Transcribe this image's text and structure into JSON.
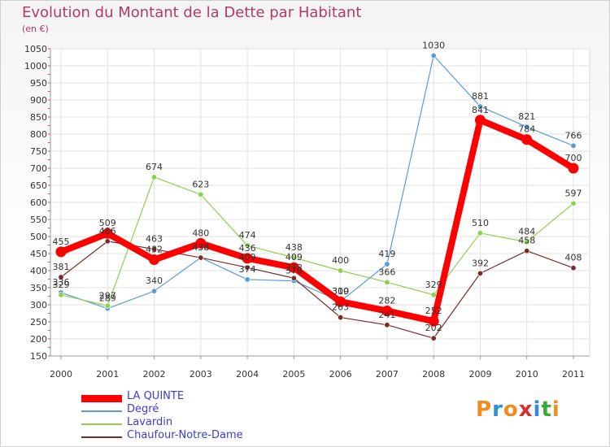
{
  "header": {
    "title": "Evolution du Montant de la Dette par Habitant",
    "subtitle": "(en €)"
  },
  "logo": {
    "text": "Proxiti",
    "colors": [
      "#f28c1e",
      "#2f8fd6",
      "#f28c1e",
      "#d62f2f",
      "#2f8fd6",
      "#3aa83a",
      "#f28c1e"
    ]
  },
  "chart_data": {
    "type": "line",
    "title": "Evolution du Montant de la Dette par Habitant",
    "subtitle": "(en €)",
    "xlabel": "",
    "ylabel": "",
    "categories": [
      "2000",
      "2001",
      "2002",
      "2003",
      "2004",
      "2005",
      "2006",
      "2007",
      "2008",
      "2009",
      "2010",
      "2011"
    ],
    "ylim": [
      150,
      1050
    ],
    "yticks": [
      150,
      200,
      250,
      300,
      350,
      400,
      450,
      500,
      550,
      600,
      650,
      700,
      750,
      800,
      850,
      900,
      950,
      1000,
      1050
    ],
    "grid": true,
    "legend_position": "bottom-left",
    "series": [
      {
        "name": "LA QUINTE",
        "color": "#ff0000",
        "values": [
          455,
          509,
          432,
          480,
          436,
          409,
          309,
          282,
          252,
          841,
          784,
          700
        ]
      },
      {
        "name": "Degré",
        "color": "#5b9bd5",
        "values": [
          336,
          289,
          340,
          438,
          374,
          370,
          310,
          419,
          1030,
          881,
          821,
          766
        ]
      },
      {
        "name": "Lavardin",
        "color": "#8bd14a",
        "values": [
          329,
          297,
          674,
          623,
          474,
          438,
          400,
          366,
          329,
          510,
          484,
          597
        ]
      },
      {
        "name": "Chaufour-Notre-Dame",
        "color": "#7a2a2a",
        "values": [
          381,
          486,
          463,
          438,
          409,
          378,
          263,
          241,
          202,
          392,
          458,
          408
        ]
      }
    ]
  }
}
